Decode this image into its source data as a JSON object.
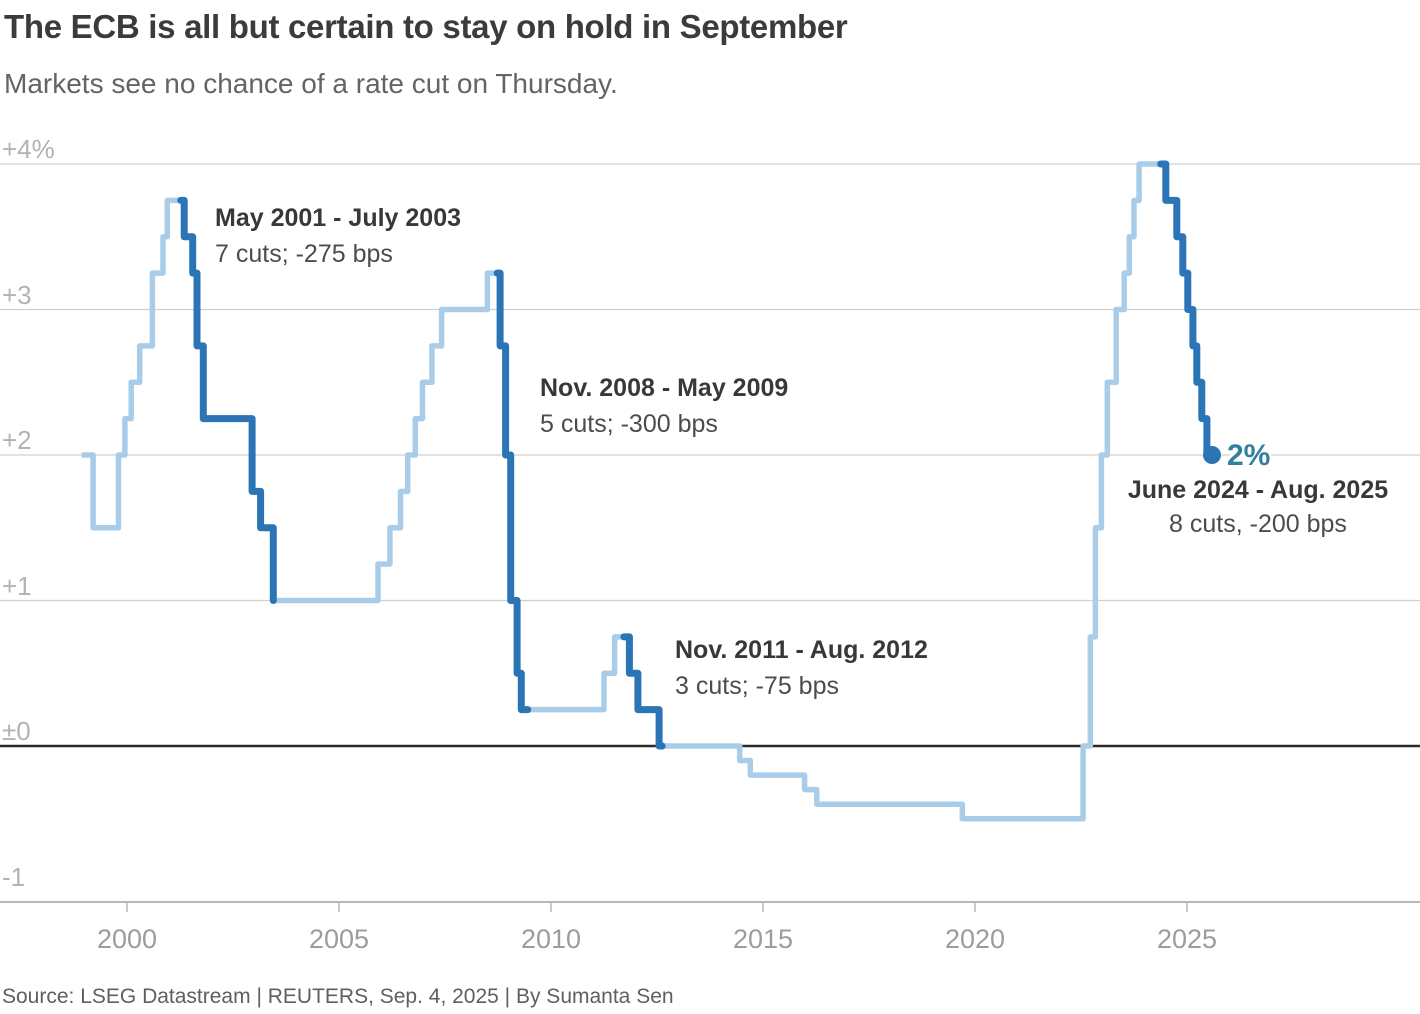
{
  "header": {
    "title": "The ECB is all but certain to stay on hold in September",
    "subtitle": "Markets see no chance of a rate cut on Thursday."
  },
  "source_line": "Source: LSEG Datastream | REUTERS, Sep. 4, 2025 | By Sumanta Sen",
  "colors": {
    "series_light": "#a9cde9",
    "series_dark": "#2b74b6",
    "end_label_accent": "#31809f"
  },
  "chart_data": {
    "type": "line",
    "subtype": "step",
    "unit": "percent",
    "y_axis": {
      "labels": [
        {
          "text": "+4%",
          "value": 4
        },
        {
          "text": "+3",
          "value": 3
        },
        {
          "text": "+2",
          "value": 2
        },
        {
          "text": "+1",
          "value": 1
        },
        {
          "text": "±0",
          "value": 0
        },
        {
          "text": "-1",
          "value": -1
        }
      ],
      "gridline_values": [
        4,
        3,
        2,
        1
      ],
      "zero_value": 0,
      "ylim": [
        -1.07,
        4.35
      ],
      "grid": true
    },
    "x_axis": {
      "tick_years": [
        2000,
        2005,
        2010,
        2015,
        2020,
        2025
      ],
      "ticks": [
        "2000",
        "2005",
        "2010",
        "2015",
        "2020",
        "2025"
      ],
      "range_years": [
        1998.93,
        2030.5
      ]
    },
    "series": {
      "points": [
        [
          1998.93,
          2.0
        ],
        [
          1999.2,
          1.5
        ],
        [
          1999.8,
          2.0
        ],
        [
          1999.95,
          2.25
        ],
        [
          2000.1,
          2.5
        ],
        [
          2000.3,
          2.75
        ],
        [
          2000.6,
          3.25
        ],
        [
          2000.85,
          3.5
        ],
        [
          2000.95,
          3.75
        ],
        [
          2001.35,
          3.5
        ],
        [
          2001.55,
          3.25
        ],
        [
          2001.65,
          2.75
        ],
        [
          2001.8,
          2.25
        ],
        [
          2002.95,
          1.75
        ],
        [
          2003.15,
          1.5
        ],
        [
          2003.45,
          1.0
        ],
        [
          2005.92,
          1.25
        ],
        [
          2006.2,
          1.5
        ],
        [
          2006.45,
          1.75
        ],
        [
          2006.62,
          2.0
        ],
        [
          2006.8,
          2.25
        ],
        [
          2006.97,
          2.5
        ],
        [
          2007.19,
          2.75
        ],
        [
          2007.42,
          3.0
        ],
        [
          2008.5,
          3.25
        ],
        [
          2008.8,
          2.75
        ],
        [
          2008.93,
          2.0
        ],
        [
          2009.05,
          1.0
        ],
        [
          2009.2,
          0.5
        ],
        [
          2009.3,
          0.25
        ],
        [
          2011.25,
          0.5
        ],
        [
          2011.5,
          0.75
        ],
        [
          2011.85,
          0.5
        ],
        [
          2012.05,
          0.25
        ],
        [
          2012.55,
          0.0
        ],
        [
          2014.45,
          -0.1
        ],
        [
          2014.7,
          -0.2
        ],
        [
          2015.98,
          -0.3
        ],
        [
          2016.27,
          -0.4
        ],
        [
          2019.7,
          -0.5
        ],
        [
          2022.55,
          0.0
        ],
        [
          2022.72,
          0.75
        ],
        [
          2022.84,
          1.5
        ],
        [
          2022.98,
          2.0
        ],
        [
          2023.12,
          2.5
        ],
        [
          2023.33,
          3.0
        ],
        [
          2023.52,
          3.25
        ],
        [
          2023.64,
          3.5
        ],
        [
          2023.75,
          3.75
        ],
        [
          2023.87,
          4.0
        ],
        [
          2024.5,
          3.75
        ],
        [
          2024.76,
          3.5
        ],
        [
          2024.9,
          3.25
        ],
        [
          2025.02,
          3.0
        ],
        [
          2025.14,
          2.75
        ],
        [
          2025.23,
          2.5
        ],
        [
          2025.35,
          2.25
        ],
        [
          2025.47,
          2.0
        ]
      ],
      "end": 2025.59
    },
    "cut_segments": [
      {
        "heading": "May 2001 - July 2003",
        "detail": "7 cuts; -275 bps",
        "points": [
          [
            2001.27,
            3.75
          ],
          [
            2001.35,
            3.5
          ],
          [
            2001.55,
            3.25
          ],
          [
            2001.65,
            2.75
          ],
          [
            2001.8,
            2.25
          ],
          [
            2002.95,
            1.75
          ],
          [
            2003.15,
            1.5
          ],
          [
            2003.45,
            1.0
          ]
        ],
        "end": null
      },
      {
        "heading": "Nov. 2008 - May 2009",
        "detail": "5 cuts; -300 bps",
        "points": [
          [
            2008.73,
            3.25
          ],
          [
            2008.8,
            2.75
          ],
          [
            2008.93,
            2.0
          ],
          [
            2009.05,
            1.0
          ],
          [
            2009.2,
            0.5
          ],
          [
            2009.3,
            0.25
          ]
        ],
        "end": 2009.45
      },
      {
        "heading": "Nov. 2011 - Aug. 2012",
        "detail": "3 cuts; -75 bps",
        "points": [
          [
            2011.72,
            0.75
          ],
          [
            2011.85,
            0.5
          ],
          [
            2012.05,
            0.25
          ],
          [
            2012.55,
            0.0
          ]
        ],
        "end": 2012.62
      },
      {
        "heading": "June 2024 - Aug. 2025",
        "detail": "8 cuts, -200 bps",
        "points": [
          [
            2024.38,
            4.0
          ],
          [
            2024.5,
            3.75
          ],
          [
            2024.76,
            3.5
          ],
          [
            2024.9,
            3.25
          ],
          [
            2025.02,
            3.0
          ],
          [
            2025.14,
            2.75
          ],
          [
            2025.23,
            2.5
          ],
          [
            2025.35,
            2.25
          ],
          [
            2025.47,
            2.0
          ]
        ],
        "end": 2025.59
      }
    ],
    "end_marker": {
      "label": "2%",
      "year": 2025.59,
      "value": 2.0
    }
  }
}
